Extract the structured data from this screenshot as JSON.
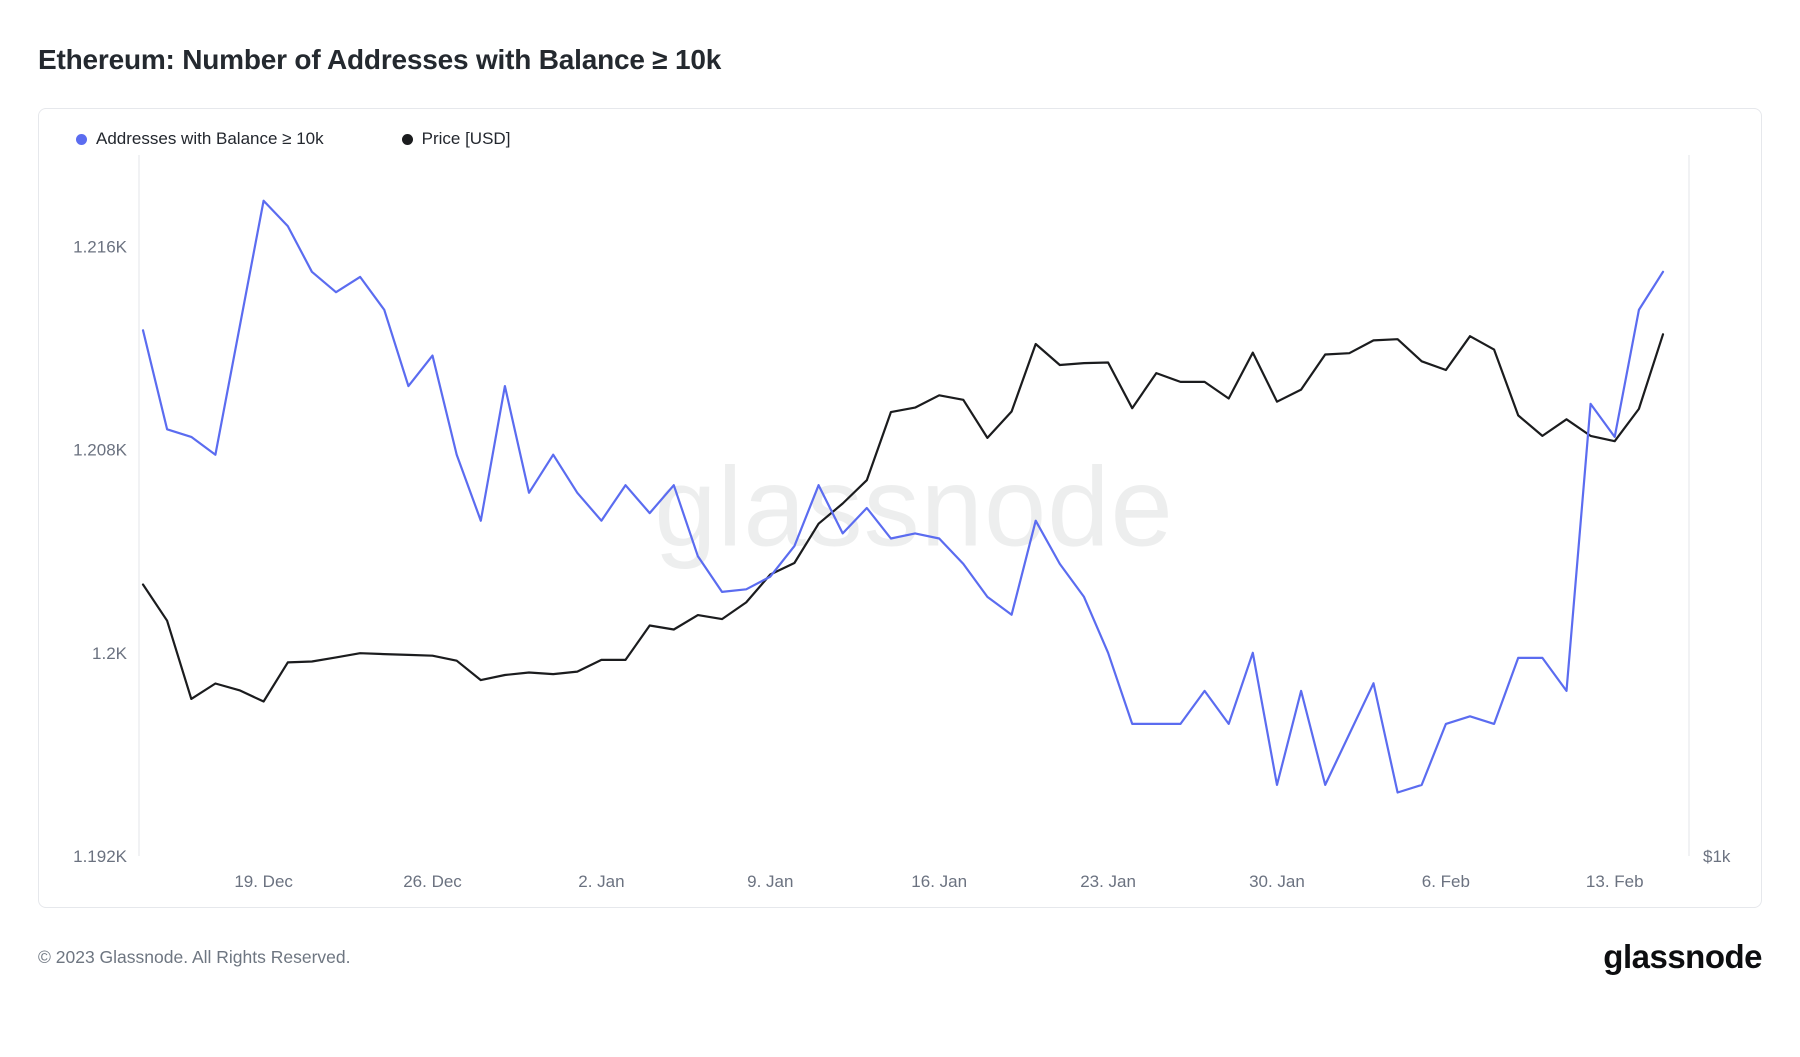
{
  "page": {
    "title": "Ethereum: Number of Addresses with Balance ≥ 10k",
    "watermark": "glassnode",
    "footer": {
      "copyright": "© 2023 Glassnode. All Rights Reserved.",
      "brand": "glassnode"
    }
  },
  "legend": {
    "items": [
      {
        "label": "Addresses with Balance ≥ 10k",
        "color": "#5b6cf0"
      },
      {
        "label": "Price [USD]",
        "color": "#1b1c1e"
      }
    ]
  },
  "chart_data": {
    "type": "line",
    "title": "Ethereum: Number of Addresses with Balance ≥ 10k",
    "grid": false,
    "legend_position": "top-left",
    "x": [
      "2022-12-14",
      "2022-12-15",
      "2022-12-16",
      "2022-12-17",
      "2022-12-18",
      "2022-12-19",
      "2022-12-20",
      "2022-12-21",
      "2022-12-22",
      "2022-12-23",
      "2022-12-24",
      "2022-12-25",
      "2022-12-26",
      "2022-12-27",
      "2022-12-28",
      "2022-12-29",
      "2022-12-30",
      "2022-12-31",
      "2023-01-01",
      "2023-01-02",
      "2023-01-03",
      "2023-01-04",
      "2023-01-05",
      "2023-01-06",
      "2023-01-07",
      "2023-01-08",
      "2023-01-09",
      "2023-01-10",
      "2023-01-11",
      "2023-01-12",
      "2023-01-13",
      "2023-01-14",
      "2023-01-15",
      "2023-01-16",
      "2023-01-17",
      "2023-01-18",
      "2023-01-19",
      "2023-01-20",
      "2023-01-21",
      "2023-01-22",
      "2023-01-23",
      "2023-01-24",
      "2023-01-25",
      "2023-01-26",
      "2023-01-27",
      "2023-01-28",
      "2023-01-29",
      "2023-01-30",
      "2023-01-31",
      "2023-02-01",
      "2023-02-02",
      "2023-02-03",
      "2023-02-04",
      "2023-02-05",
      "2023-02-06",
      "2023-02-07",
      "2023-02-08",
      "2023-02-09",
      "2023-02-10",
      "2023-02-11",
      "2023-02-12",
      "2023-02-13",
      "2023-02-14",
      "2023-02-15"
    ],
    "series": [
      {
        "name": "Addresses with Balance ≥ 10k",
        "axis": "left",
        "unit": "K addresses",
        "color": "#5b6cf0",
        "values": [
          1.2127,
          1.2088,
          1.2085,
          1.2078,
          1.2128,
          1.2178,
          1.2168,
          1.215,
          1.2142,
          1.2148,
          1.2135,
          1.2105,
          1.2117,
          1.2078,
          1.2052,
          1.2105,
          1.2063,
          1.2078,
          1.2063,
          1.2052,
          1.2066,
          1.2055,
          1.2066,
          1.2038,
          1.2024,
          1.2025,
          1.203,
          1.2042,
          1.2066,
          1.2047,
          1.2057,
          1.2045,
          1.2047,
          1.2045,
          1.2035,
          1.2022,
          1.2015,
          1.2052,
          1.2035,
          1.2022,
          1.2,
          1.1972,
          1.1972,
          1.1972,
          1.1985,
          1.1972,
          1.2,
          1.1948,
          1.1985,
          1.1948,
          1.1968,
          1.1988,
          1.1945,
          1.1948,
          1.1972,
          1.1975,
          1.1972,
          1.1998,
          1.1998,
          1.1985,
          1.2098,
          1.2085,
          1.2135,
          1.215
        ]
      },
      {
        "name": "Price [USD]",
        "axis": "right",
        "unit": "USD",
        "color": "#1b1c1e",
        "values": [
          1308,
          1262,
          1168,
          1186,
          1178,
          1165,
          1211,
          1212,
          1217,
          1222,
          1221,
          1220,
          1219,
          1213,
          1190,
          1196,
          1199,
          1197,
          1200,
          1214,
          1214,
          1256,
          1251,
          1269,
          1264,
          1285,
          1321,
          1336,
          1389,
          1417,
          1450,
          1551,
          1558,
          1577,
          1570,
          1512,
          1552,
          1659,
          1625,
          1628,
          1629,
          1557,
          1612,
          1598,
          1598,
          1572,
          1645,
          1567,
          1586,
          1642,
          1644,
          1665,
          1667,
          1631,
          1617,
          1672,
          1650,
          1546,
          1515,
          1540,
          1515,
          1507,
          1556,
          1675
        ]
      }
    ],
    "left_axis": {
      "scale": "linear",
      "range": [
        1.192,
        1.2196
      ],
      "ticks": [
        {
          "value": 1.216,
          "label": "1.216K"
        },
        {
          "value": 1.208,
          "label": "1.208K"
        },
        {
          "value": 1.2,
          "label": "1.2K"
        },
        {
          "value": 1.192,
          "label": "1.192K"
        }
      ]
    },
    "right_axis": {
      "scale": "log",
      "range": [
        1000,
        2000
      ],
      "ticks": [
        {
          "value": 1000,
          "label": "$1k"
        }
      ]
    },
    "x_ticks": [
      {
        "index": 5,
        "label": "19. Dec"
      },
      {
        "index": 12,
        "label": "26. Dec"
      },
      {
        "index": 19,
        "label": "2. Jan"
      },
      {
        "index": 26,
        "label": "9. Jan"
      },
      {
        "index": 33,
        "label": "16. Jan"
      },
      {
        "index": 40,
        "label": "23. Jan"
      },
      {
        "index": 47,
        "label": "30. Jan"
      },
      {
        "index": 54,
        "label": "6. Feb"
      },
      {
        "index": 61,
        "label": "13. Feb"
      }
    ]
  }
}
